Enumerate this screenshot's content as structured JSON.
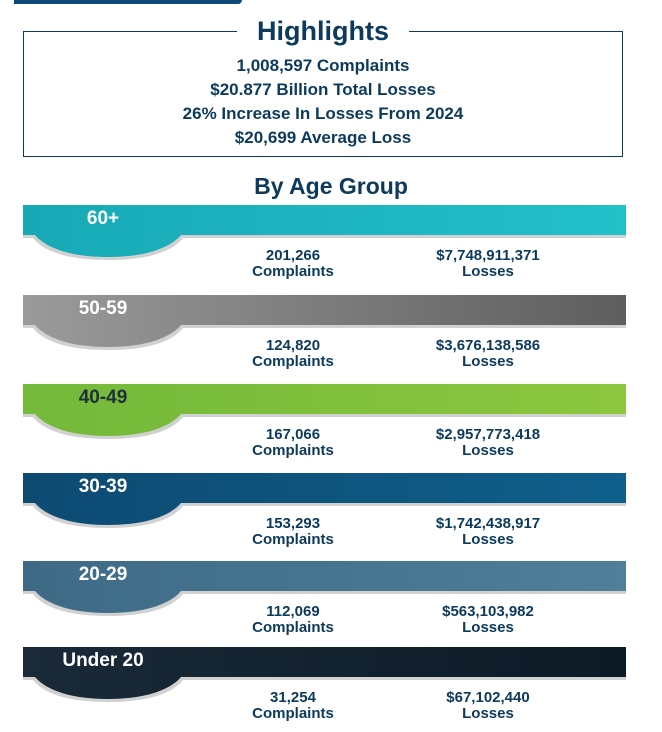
{
  "highlights": {
    "title": "Highlights",
    "lines": [
      "1,008,597 Complaints",
      "$20.877 Billion Total Losses",
      "26% Increase In Losses From 2024",
      "$20,699 Average Loss"
    ]
  },
  "age_section": {
    "title": "By Age Group",
    "groups": [
      {
        "label": "60+",
        "complaints": "201,266",
        "complaints_label": "Complaints",
        "losses": "$7,748,911,371",
        "losses_label": "Losses",
        "color_start": "#17a9b6",
        "color_end": "#23c0c9",
        "text_color": "#ffffff"
      },
      {
        "label": "50-59",
        "complaints": "124,820",
        "complaints_label": "Complaints",
        "losses": "$3,676,138,586",
        "losses_label": "Losses",
        "color_start": "#9a9a9a",
        "color_end": "#5e5e5e",
        "text_color": "#ffffff"
      },
      {
        "label": "40-49",
        "complaints": "167,066",
        "complaints_label": "Complaints",
        "losses": "$2,957,773,418",
        "losses_label": "Losses",
        "color_start": "#73b93a",
        "color_end": "#8cc63f",
        "text_color": "#1f2f3a"
      },
      {
        "label": "30-39",
        "complaints": "153,293",
        "complaints_label": "Complaints",
        "losses": "$1,742,438,917",
        "losses_label": "Losses",
        "color_start": "#0d4a72",
        "color_end": "#0f5f8a",
        "text_color": "#ffffff"
      },
      {
        "label": "20-29",
        "complaints": "112,069",
        "complaints_label": "Complaints",
        "losses": "$563,103,982",
        "losses_label": "Losses",
        "color_start": "#3e6a86",
        "color_end": "#4f7f99",
        "text_color": "#ffffff"
      },
      {
        "label": "Under 20",
        "complaints": "31,254",
        "complaints_label": "Complaints",
        "losses": "$67,102,440",
        "losses_label": "Losses",
        "color_start": "#1a2a38",
        "color_end": "#0c1a26",
        "text_color": "#ffffff"
      }
    ]
  }
}
